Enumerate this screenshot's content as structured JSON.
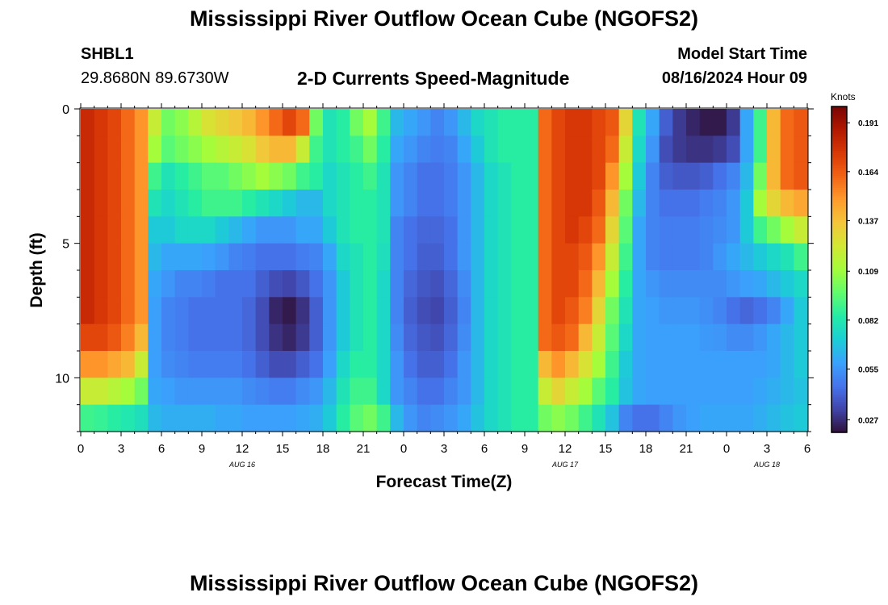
{
  "header": {
    "title": "Mississippi River Outflow Ocean Cube (NGOFS2)",
    "station_id": "SHBL1",
    "coordinates": "29.8680N  89.6730W",
    "subtitle": "2-D Currents Speed-Magnitude",
    "model_start_label": "Model Start Time",
    "model_start_value": "08/16/2024 Hour 09"
  },
  "footer": {
    "title": "Mississippi River Outflow Ocean Cube (NGOFS2)"
  },
  "colorbar": {
    "units": "Knots",
    "ticks": [
      "0.191",
      "0.164",
      "0.137",
      "0.109",
      "0.082",
      "0.055",
      "0.027"
    ]
  },
  "chart_data": {
    "type": "heatmap",
    "title": "2-D Currents Speed-Magnitude",
    "xlabel": "Forecast Time(Z)",
    "ylabel": "Depth (ft)",
    "x_tick_labels": [
      "0",
      "3",
      "6",
      "9",
      "12",
      "15",
      "18",
      "21",
      "0",
      "3",
      "6",
      "9",
      "12",
      "15",
      "18",
      "21",
      "0",
      "3",
      "6"
    ],
    "date_labels": [
      "AUG 16",
      "AUG 17",
      "AUG 18"
    ],
    "y_tick_labels": [
      "0",
      "5",
      "10"
    ],
    "ylim": [
      0,
      12
    ],
    "colorbar_range": [
      0.02,
      0.2
    ],
    "columns_hours": 54,
    "depth_rows": 12,
    "colors": [
      "#30123b",
      "#4145ab",
      "#4675ed",
      "#39a2fc",
      "#1bcfd4",
      "#24eca6",
      "#61fc6c",
      "#a4fc3b",
      "#d1e834",
      "#f3c63a",
      "#fe9b2d",
      "#f36315",
      "#d93806",
      "#b11901",
      "#7a0403"
    ],
    "rows": [
      [
        0.18,
        0.175,
        0.17,
        0.16,
        0.15,
        0.12,
        0.1,
        0.105,
        0.115,
        0.125,
        0.13,
        0.135,
        0.14,
        0.15,
        0.16,
        0.17,
        0.16,
        0.1,
        0.08,
        0.085,
        0.1,
        0.11,
        0.09,
        0.065,
        0.06,
        0.055,
        0.05,
        0.055,
        0.065,
        0.075,
        0.08,
        0.085,
        0.085,
        0.085,
        0.16,
        0.17,
        0.175,
        0.175,
        0.17,
        0.165,
        0.13,
        0.08,
        0.06,
        0.04,
        0.03,
        0.025,
        0.022,
        0.022,
        0.03,
        0.06,
        0.09,
        0.14,
        0.16,
        0.165
      ],
      [
        0.18,
        0.175,
        0.17,
        0.16,
        0.15,
        0.11,
        0.095,
        0.1,
        0.105,
        0.11,
        0.115,
        0.12,
        0.125,
        0.135,
        0.14,
        0.14,
        0.12,
        0.09,
        0.08,
        0.085,
        0.09,
        0.1,
        0.085,
        0.06,
        0.055,
        0.05,
        0.048,
        0.05,
        0.06,
        0.07,
        0.08,
        0.085,
        0.085,
        0.085,
        0.16,
        0.17,
        0.175,
        0.175,
        0.17,
        0.16,
        0.12,
        0.075,
        0.055,
        0.035,
        0.03,
        0.028,
        0.028,
        0.03,
        0.035,
        0.06,
        0.09,
        0.14,
        0.16,
        0.165
      ],
      [
        0.18,
        0.175,
        0.17,
        0.16,
        0.15,
        0.09,
        0.08,
        0.085,
        0.09,
        0.095,
        0.095,
        0.1,
        0.105,
        0.11,
        0.105,
        0.1,
        0.09,
        0.085,
        0.075,
        0.08,
        0.085,
        0.09,
        0.08,
        0.055,
        0.05,
        0.045,
        0.045,
        0.048,
        0.055,
        0.065,
        0.075,
        0.08,
        0.085,
        0.085,
        0.16,
        0.17,
        0.175,
        0.175,
        0.17,
        0.15,
        0.11,
        0.07,
        0.05,
        0.04,
        0.038,
        0.038,
        0.04,
        0.045,
        0.05,
        0.065,
        0.1,
        0.14,
        0.16,
        0.165
      ],
      [
        0.18,
        0.175,
        0.17,
        0.16,
        0.15,
        0.08,
        0.075,
        0.08,
        0.085,
        0.09,
        0.09,
        0.09,
        0.085,
        0.08,
        0.075,
        0.07,
        0.065,
        0.065,
        0.075,
        0.08,
        0.085,
        0.085,
        0.08,
        0.055,
        0.05,
        0.045,
        0.045,
        0.048,
        0.055,
        0.065,
        0.075,
        0.08,
        0.085,
        0.085,
        0.16,
        0.17,
        0.175,
        0.175,
        0.165,
        0.14,
        0.1,
        0.065,
        0.05,
        0.045,
        0.045,
        0.045,
        0.048,
        0.05,
        0.055,
        0.07,
        0.11,
        0.13,
        0.14,
        0.145
      ],
      [
        0.18,
        0.175,
        0.17,
        0.16,
        0.15,
        0.07,
        0.07,
        0.075,
        0.075,
        0.075,
        0.07,
        0.065,
        0.06,
        0.055,
        0.055,
        0.055,
        0.06,
        0.06,
        0.07,
        0.08,
        0.085,
        0.085,
        0.08,
        0.05,
        0.045,
        0.042,
        0.042,
        0.045,
        0.055,
        0.065,
        0.075,
        0.08,
        0.085,
        0.085,
        0.16,
        0.17,
        0.175,
        0.17,
        0.16,
        0.13,
        0.095,
        0.06,
        0.05,
        0.048,
        0.048,
        0.048,
        0.05,
        0.052,
        0.055,
        0.07,
        0.09,
        0.1,
        0.11,
        0.12
      ],
      [
        0.18,
        0.175,
        0.17,
        0.16,
        0.15,
        0.065,
        0.06,
        0.06,
        0.06,
        0.058,
        0.055,
        0.05,
        0.048,
        0.045,
        0.045,
        0.045,
        0.048,
        0.05,
        0.06,
        0.075,
        0.08,
        0.085,
        0.078,
        0.05,
        0.045,
        0.04,
        0.04,
        0.045,
        0.055,
        0.065,
        0.075,
        0.08,
        0.085,
        0.085,
        0.16,
        0.17,
        0.17,
        0.165,
        0.15,
        0.12,
        0.09,
        0.06,
        0.05,
        0.048,
        0.048,
        0.048,
        0.05,
        0.055,
        0.06,
        0.065,
        0.07,
        0.075,
        0.08,
        0.09
      ],
      [
        0.18,
        0.175,
        0.17,
        0.16,
        0.15,
        0.06,
        0.055,
        0.05,
        0.05,
        0.048,
        0.045,
        0.045,
        0.045,
        0.04,
        0.035,
        0.033,
        0.038,
        0.045,
        0.055,
        0.07,
        0.08,
        0.085,
        0.075,
        0.05,
        0.042,
        0.038,
        0.036,
        0.042,
        0.052,
        0.065,
        0.075,
        0.08,
        0.085,
        0.085,
        0.16,
        0.17,
        0.17,
        0.16,
        0.14,
        0.11,
        0.085,
        0.06,
        0.055,
        0.052,
        0.052,
        0.052,
        0.052,
        0.052,
        0.055,
        0.058,
        0.06,
        0.065,
        0.07,
        0.075
      ],
      [
        0.18,
        0.175,
        0.17,
        0.16,
        0.15,
        0.058,
        0.05,
        0.048,
        0.045,
        0.045,
        0.045,
        0.045,
        0.042,
        0.035,
        0.025,
        0.022,
        0.028,
        0.04,
        0.055,
        0.07,
        0.08,
        0.085,
        0.075,
        0.05,
        0.04,
        0.035,
        0.033,
        0.04,
        0.05,
        0.065,
        0.075,
        0.08,
        0.085,
        0.085,
        0.16,
        0.17,
        0.165,
        0.155,
        0.13,
        0.1,
        0.08,
        0.06,
        0.058,
        0.055,
        0.055,
        0.055,
        0.053,
        0.05,
        0.045,
        0.042,
        0.045,
        0.05,
        0.06,
        0.07
      ],
      [
        0.17,
        0.17,
        0.165,
        0.155,
        0.14,
        0.058,
        0.05,
        0.048,
        0.045,
        0.045,
        0.045,
        0.045,
        0.042,
        0.035,
        0.028,
        0.025,
        0.03,
        0.04,
        0.055,
        0.07,
        0.08,
        0.085,
        0.075,
        0.052,
        0.042,
        0.038,
        0.036,
        0.042,
        0.052,
        0.065,
        0.075,
        0.08,
        0.085,
        0.085,
        0.16,
        0.165,
        0.16,
        0.14,
        0.12,
        0.095,
        0.075,
        0.06,
        0.058,
        0.058,
        0.058,
        0.058,
        0.056,
        0.055,
        0.052,
        0.052,
        0.055,
        0.06,
        0.065,
        0.07
      ],
      [
        0.15,
        0.15,
        0.145,
        0.14,
        0.12,
        0.058,
        0.052,
        0.05,
        0.048,
        0.048,
        0.048,
        0.048,
        0.045,
        0.04,
        0.035,
        0.035,
        0.04,
        0.045,
        0.058,
        0.075,
        0.085,
        0.085,
        0.075,
        0.055,
        0.045,
        0.04,
        0.04,
        0.045,
        0.055,
        0.065,
        0.075,
        0.08,
        0.085,
        0.085,
        0.14,
        0.15,
        0.14,
        0.125,
        0.11,
        0.09,
        0.07,
        0.06,
        0.058,
        0.058,
        0.058,
        0.058,
        0.058,
        0.058,
        0.058,
        0.058,
        0.058,
        0.06,
        0.065,
        0.07
      ],
      [
        0.12,
        0.12,
        0.115,
        0.11,
        0.1,
        0.06,
        0.058,
        0.055,
        0.055,
        0.055,
        0.055,
        0.055,
        0.052,
        0.05,
        0.048,
        0.048,
        0.052,
        0.055,
        0.065,
        0.08,
        0.09,
        0.09,
        0.075,
        0.055,
        0.05,
        0.045,
        0.045,
        0.05,
        0.055,
        0.065,
        0.075,
        0.08,
        0.085,
        0.085,
        0.12,
        0.13,
        0.12,
        0.11,
        0.095,
        0.085,
        0.068,
        0.06,
        0.058,
        0.058,
        0.058,
        0.058,
        0.058,
        0.058,
        0.058,
        0.058,
        0.06,
        0.062,
        0.065,
        0.068
      ],
      [
        0.09,
        0.088,
        0.085,
        0.082,
        0.078,
        0.065,
        0.062,
        0.062,
        0.062,
        0.062,
        0.06,
        0.06,
        0.058,
        0.058,
        0.058,
        0.058,
        0.06,
        0.062,
        0.07,
        0.085,
        0.095,
        0.1,
        0.09,
        0.065,
        0.055,
        0.05,
        0.052,
        0.055,
        0.06,
        0.068,
        0.075,
        0.08,
        0.085,
        0.085,
        0.1,
        0.105,
        0.1,
        0.09,
        0.08,
        0.068,
        0.05,
        0.045,
        0.045,
        0.05,
        0.055,
        0.058,
        0.06,
        0.06,
        0.06,
        0.06,
        0.062,
        0.065,
        0.068,
        0.07
      ]
    ]
  }
}
